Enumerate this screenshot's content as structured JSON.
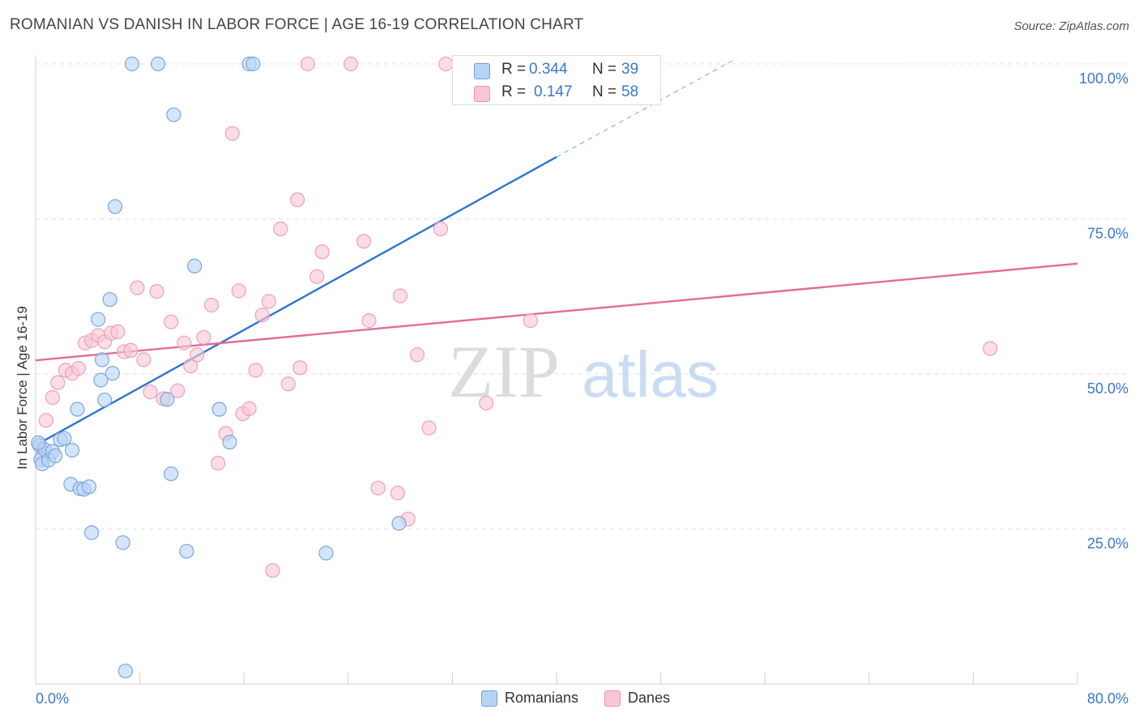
{
  "title": "ROMANIAN VS DANISH IN LABOR FORCE | AGE 16-19 CORRELATION CHART",
  "source": "Source: ZipAtlas.com",
  "watermark": {
    "zip": "ZIP",
    "atlas": "atlas"
  },
  "colors": {
    "blue": "#3a78c9",
    "blue_fill": "#b8d4f5",
    "pink": "#e56b96",
    "pink_fill": "#f9c6d6"
  },
  "stats": [
    {
      "series": "Romanians",
      "r_label": "R =",
      "r_value": "0.344",
      "n_label": "N =",
      "n_value": "39"
    },
    {
      "series": "Danes",
      "r_label": "R =",
      "r_value": "0.147",
      "n_label": "N =",
      "n_value": "58"
    }
  ],
  "legend": [
    "Romanians",
    "Danes"
  ],
  "chart_data": {
    "type": "scatter",
    "title": "ROMANIAN VS DANISH IN LABOR FORCE | AGE 16-19 CORRELATION CHART",
    "xlabel": "",
    "ylabel": "In Labor Force | Age 16-19",
    "xlim": [
      0,
      80
    ],
    "ylim": [
      0,
      100
    ],
    "x_tick_labels": [
      "0.0%",
      "80.0%"
    ],
    "y_tick_labels": [
      "25.0%",
      "50.0%",
      "75.0%",
      "100.0%"
    ],
    "y_ticks": [
      25,
      50,
      75,
      100
    ],
    "series": [
      {
        "name": "Romanians",
        "r": 0.344,
        "n": 39,
        "trend": {
          "x0": 0,
          "y0": 38.5,
          "x1": 40,
          "y1": 85.0,
          "dash_to_x": 53.5,
          "dash_to_y": 100.5
        },
        "points": [
          [
            0.3,
            38.5
          ],
          [
            0.4,
            36.2
          ],
          [
            0.5,
            35.5
          ],
          [
            0.7,
            37.8
          ],
          [
            1.0,
            36.1
          ],
          [
            1.3,
            37.5
          ],
          [
            1.5,
            36.8
          ],
          [
            1.9,
            39.4
          ],
          [
            2.2,
            39.6
          ],
          [
            2.8,
            37.7
          ],
          [
            3.2,
            44.3
          ],
          [
            2.7,
            32.2
          ],
          [
            3.4,
            31.5
          ],
          [
            3.7,
            31.4
          ],
          [
            4.1,
            31.8
          ],
          [
            4.3,
            24.4
          ],
          [
            4.8,
            58.8
          ],
          [
            5.0,
            49.0
          ],
          [
            5.1,
            52.3
          ],
          [
            5.3,
            45.8
          ],
          [
            5.7,
            62.0
          ],
          [
            5.9,
            50.1
          ],
          [
            6.1,
            77.0
          ],
          [
            6.7,
            22.8
          ],
          [
            7.4,
            100.0
          ],
          [
            9.4,
            100.0
          ],
          [
            10.1,
            45.9
          ],
          [
            10.4,
            33.9
          ],
          [
            10.6,
            91.8
          ],
          [
            11.6,
            21.4
          ],
          [
            12.2,
            67.4
          ],
          [
            14.1,
            44.3
          ],
          [
            14.9,
            39.0
          ],
          [
            16.4,
            100.0
          ],
          [
            16.7,
            100.0
          ],
          [
            22.3,
            21.1
          ],
          [
            27.9,
            25.9
          ],
          [
            6.9,
            2.1
          ],
          [
            0.2,
            38.9
          ]
        ]
      },
      {
        "name": "Danes",
        "r": 0.147,
        "n": 58,
        "trend": {
          "x0": 0,
          "y0": 52.2,
          "x1": 80,
          "y1": 67.8
        },
        "points": [
          [
            0.3,
            38.5
          ],
          [
            0.5,
            36.8
          ],
          [
            0.8,
            42.5
          ],
          [
            1.3,
            46.2
          ],
          [
            1.7,
            48.6
          ],
          [
            2.3,
            50.6
          ],
          [
            2.8,
            50.1
          ],
          [
            3.3,
            50.9
          ],
          [
            3.8,
            55.0
          ],
          [
            4.3,
            55.4
          ],
          [
            4.8,
            56.2
          ],
          [
            5.3,
            55.2
          ],
          [
            5.8,
            56.6
          ],
          [
            6.3,
            56.8
          ],
          [
            6.8,
            53.6
          ],
          [
            7.3,
            53.8
          ],
          [
            7.8,
            63.9
          ],
          [
            8.3,
            52.3
          ],
          [
            8.8,
            47.1
          ],
          [
            9.3,
            63.3
          ],
          [
            9.8,
            46.0
          ],
          [
            10.4,
            58.4
          ],
          [
            10.9,
            47.3
          ],
          [
            11.4,
            55.0
          ],
          [
            11.9,
            51.3
          ],
          [
            12.4,
            53.1
          ],
          [
            12.9,
            55.9
          ],
          [
            13.5,
            61.1
          ],
          [
            14.0,
            35.6
          ],
          [
            14.6,
            40.4
          ],
          [
            15.1,
            88.8
          ],
          [
            15.6,
            63.4
          ],
          [
            15.9,
            43.6
          ],
          [
            16.4,
            44.4
          ],
          [
            16.9,
            50.6
          ],
          [
            17.4,
            59.5
          ],
          [
            17.9,
            61.7
          ],
          [
            18.2,
            18.3
          ],
          [
            18.8,
            73.4
          ],
          [
            19.4,
            48.4
          ],
          [
            20.1,
            78.1
          ],
          [
            20.3,
            51.0
          ],
          [
            20.9,
            100.0
          ],
          [
            21.6,
            65.7
          ],
          [
            22.0,
            69.7
          ],
          [
            24.2,
            100.0
          ],
          [
            25.2,
            71.4
          ],
          [
            25.6,
            58.6
          ],
          [
            26.3,
            31.6
          ],
          [
            27.8,
            30.8
          ],
          [
            28.0,
            62.6
          ],
          [
            28.6,
            26.6
          ],
          [
            29.3,
            53.1
          ],
          [
            30.2,
            41.3
          ],
          [
            31.1,
            73.4
          ],
          [
            31.5,
            100.0
          ],
          [
            34.6,
            45.3
          ],
          [
            38.0,
            58.6
          ],
          [
            73.3,
            54.1
          ]
        ]
      }
    ]
  }
}
